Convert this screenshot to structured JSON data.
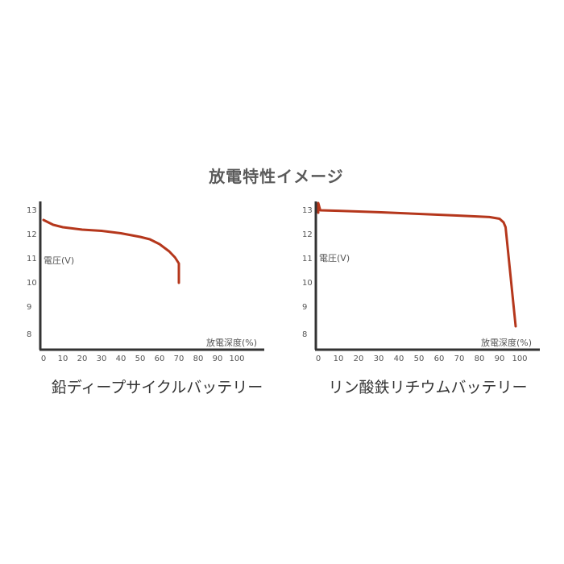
{
  "title": "放電特性イメージ",
  "chart_data": [
    {
      "type": "line",
      "title": "鉛ディープサイクルバッテリー",
      "ylabel": "電圧(V)",
      "xlabel": "放電深度(%)",
      "x_ticks": [
        "0",
        "10",
        "20",
        "30",
        "40",
        "50",
        "60",
        "70",
        "80",
        "90",
        "100"
      ],
      "y_ticks": [
        "13",
        "12",
        "11",
        "10",
        "9",
        "8"
      ],
      "series": [
        {
          "color": "#b5371c",
          "x": [
            0,
            5,
            10,
            15,
            20,
            30,
            40,
            50,
            55,
            60,
            65,
            68,
            70,
            70
          ],
          "y": [
            12.6,
            12.4,
            12.3,
            12.25,
            12.2,
            12.15,
            12.05,
            11.9,
            11.8,
            11.6,
            11.3,
            11.05,
            10.8,
            10.0
          ]
        }
      ]
    },
    {
      "type": "line",
      "title": "リン酸鉄リチウムバッテリー",
      "ylabel": "電圧(V)",
      "xlabel": "放電深度(%)",
      "x_ticks": [
        "0",
        "10",
        "20",
        "30",
        "40",
        "50",
        "60",
        "70",
        "80",
        "90",
        "100"
      ],
      "y_ticks": [
        "13",
        "12",
        "11",
        "10",
        "9",
        "8"
      ],
      "series": [
        {
          "color": "#b5371c",
          "x": [
            0,
            0,
            1,
            10,
            30,
            50,
            70,
            85,
            90,
            92,
            93,
            98
          ],
          "y": [
            12.9,
            13.3,
            13.0,
            12.98,
            12.92,
            12.85,
            12.78,
            12.72,
            12.65,
            12.5,
            12.3,
            8.2
          ]
        }
      ]
    }
  ]
}
